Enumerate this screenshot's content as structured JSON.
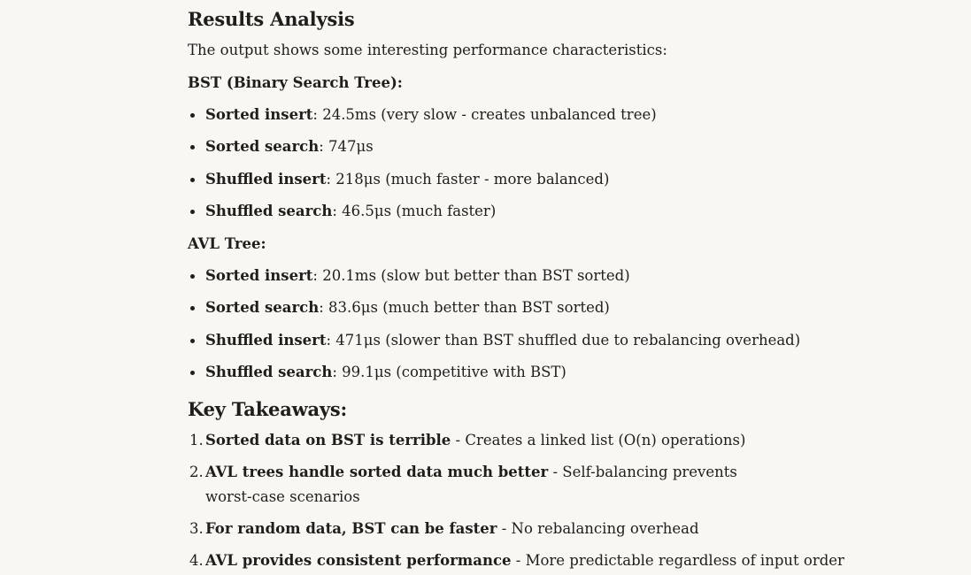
{
  "results": {
    "heading": "Results Analysis",
    "intro": "The output shows some interesting performance characteristics:"
  },
  "bst": {
    "heading": "BST (Binary Search Tree):",
    "items": [
      {
        "label": "Sorted insert",
        "text": ": 24.5ms (very slow - creates unbalanced tree)"
      },
      {
        "label": "Sorted search",
        "text": ": 747μs"
      },
      {
        "label": "Shuffled insert",
        "text": ": 218μs (much faster - more balanced)"
      },
      {
        "label": "Shuffled search",
        "text": ": 46.5μs (much faster)"
      }
    ]
  },
  "avl": {
    "heading": "AVL Tree:",
    "items": [
      {
        "label": "Sorted insert",
        "text": ": 20.1ms (slow but better than BST sorted)"
      },
      {
        "label": "Sorted search",
        "text": ": 83.6μs (much better than BST sorted)"
      },
      {
        "label": "Shuffled insert",
        "text": ": 471μs (slower than BST shuffled due to rebalancing overhead)"
      },
      {
        "label": "Shuffled search",
        "text": ": 99.1μs (competitive with BST)"
      }
    ]
  },
  "takeaways": {
    "heading": "Key Takeaways:",
    "items": [
      {
        "num": "1.",
        "label": "Sorted data on BST is terrible",
        "text": " - Creates a linked list (O(n) operations)"
      },
      {
        "num": "2.",
        "label": "AVL trees handle sorted data much better",
        "text": " - Self-balancing prevents worst-case scenarios"
      },
      {
        "num": "3.",
        "label": "For random data, BST can be faster",
        "text": " - No rebalancing overhead"
      },
      {
        "num": "4.",
        "label": "AVL provides consistent performance",
        "text": " - More predictable regardless of input order"
      }
    ]
  }
}
